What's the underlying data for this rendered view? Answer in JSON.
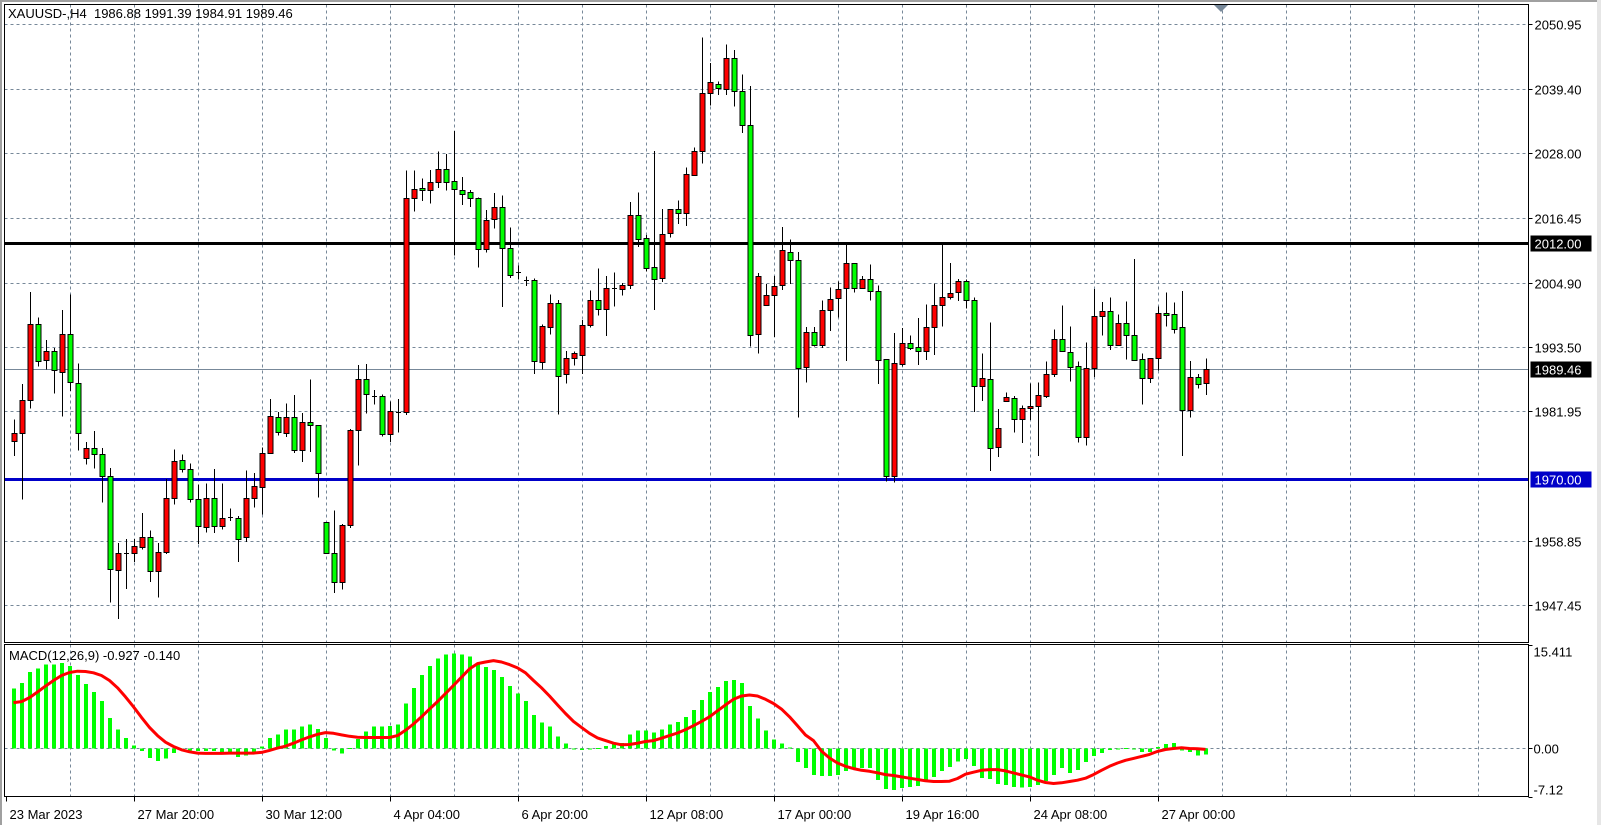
{
  "chart_data": {
    "type": "candlestick",
    "title": "XAUUSD-,H4  1986.88 1991.39 1984.91 1989.46",
    "bull_color": "#ff0000",
    "bear_color": "#00ff00",
    "grid": true,
    "grid_color": "#778899",
    "ylim": [
      1940.8,
      2054.4
    ],
    "y_ticks": [
      "2050.95",
      "2039.40",
      "2028.00",
      "2016.45",
      "2004.90",
      "1993.50",
      "1981.95",
      "1958.85",
      "1947.45"
    ],
    "x_ticks": [
      {
        "label": "23 Mar 2023",
        "bar": -1
      },
      {
        "label": "27 Mar 20:00",
        "bar": 15
      },
      {
        "label": "30 Mar 12:00",
        "bar": 31
      },
      {
        "label": "4 Apr 04:00",
        "bar": 47
      },
      {
        "label": "6 Apr 20:00",
        "bar": 63
      },
      {
        "label": "12 Apr 08:00",
        "bar": 79
      },
      {
        "label": "17 Apr 00:00",
        "bar": 95
      },
      {
        "label": "19 Apr 16:00",
        "bar": 111
      },
      {
        "label": "24 Apr 08:00",
        "bar": 127
      },
      {
        "label": "27 Apr 00:00",
        "bar": 143
      }
    ],
    "horizontal_lines": [
      {
        "price": 2012.0,
        "label": "2012.00",
        "color": "#000000"
      },
      {
        "price": 1970.0,
        "label": "1970.00",
        "color": "#0000c8"
      }
    ],
    "last_price": {
      "price": 1989.46,
      "label": "1989.46",
      "color": "#778899"
    },
    "ohlc_columns": [
      "open",
      "high",
      "low",
      "close"
    ],
    "ohlc": [
      [
        1976.6,
        1980.5,
        1974.0,
        1978.1
      ],
      [
        1978.1,
        1986.8,
        1966.3,
        1984.0
      ],
      [
        1984.0,
        2003.2,
        1982.5,
        1997.5
      ],
      [
        1997.6,
        1998.7,
        1989.9,
        1991.1
      ],
      [
        1991.1,
        1994.7,
        1989.4,
        1992.7
      ],
      [
        1992.7,
        1993.2,
        1985.1,
        1989.3
      ],
      [
        1989.0,
        2000.0,
        1981.0,
        1995.7
      ],
      [
        1995.7,
        2002.8,
        1985.6,
        1987.1
      ],
      [
        1987.0,
        1990.5,
        1975.0,
        1978.1
      ],
      [
        1973.7,
        1976.5,
        1972.5,
        1975.4
      ],
      [
        1975.4,
        1978.5,
        1971.8,
        1974.4
      ],
      [
        1974.4,
        1975.4,
        1965.7,
        1970.5
      ],
      [
        1970.5,
        1971.9,
        1947.9,
        1954.0
      ],
      [
        1953.6,
        1958.5,
        1945.0,
        1956.7
      ],
      [
        1956.7,
        1959.2,
        1950.3,
        1956.7
      ],
      [
        1956.8,
        1959.2,
        1955.1,
        1958.0
      ],
      [
        1957.8,
        1963.9,
        1957.4,
        1959.6
      ],
      [
        1959.6,
        1960.7,
        1951.6,
        1953.6
      ],
      [
        1953.6,
        1958.5,
        1948.8,
        1956.9
      ],
      [
        1956.9,
        1969.9,
        1956.6,
        1966.5
      ],
      [
        1966.5,
        1975.2,
        1965.4,
        1973.1
      ],
      [
        1973.3,
        1974.3,
        1971.1,
        1971.7
      ],
      [
        1971.7,
        1972.7,
        1965.7,
        1966.3
      ],
      [
        1966.3,
        1968.9,
        1958.3,
        1961.5
      ],
      [
        1961.5,
        1969.1,
        1960.4,
        1966.6
      ],
      [
        1966.6,
        1971.7,
        1960.3,
        1961.6
      ],
      [
        1961.6,
        1969.1,
        1960.9,
        1963.0
      ],
      [
        1963.1,
        1964.7,
        1962.4,
        1963.1
      ],
      [
        1963.0,
        1963.3,
        1955.1,
        1959.3
      ],
      [
        1959.5,
        1971.4,
        1958.7,
        1966.5
      ],
      [
        1966.5,
        1971.0,
        1964.8,
        1968.7
      ],
      [
        1968.6,
        1975.5,
        1963.6,
        1974.6
      ],
      [
        1974.6,
        1984.2,
        1974.6,
        1981.1
      ],
      [
        1980.9,
        1981.8,
        1977.7,
        1978.3
      ],
      [
        1978.1,
        1983.4,
        1977.4,
        1980.9
      ],
      [
        1980.9,
        1984.9,
        1974.5,
        1975.1
      ],
      [
        1975.1,
        1981.7,
        1972.9,
        1980.1
      ],
      [
        1980.1,
        1987.6,
        1974.7,
        1979.5
      ],
      [
        1979.5,
        1979.5,
        1966.6,
        1971.0
      ],
      [
        1962.3,
        1962.3,
        1956.7,
        1956.7
      ],
      [
        1956.7,
        1964.3,
        1949.6,
        1951.6
      ],
      [
        1951.6,
        1961.9,
        1950.2,
        1961.7
      ],
      [
        1961.7,
        1978.8,
        1961.2,
        1978.6
      ],
      [
        1978.6,
        1990.2,
        1972.3,
        1987.7
      ],
      [
        1987.7,
        1990.4,
        1981.6,
        1985.0
      ],
      [
        1984.7,
        1985.8,
        1983.2,
        1984.7
      ],
      [
        1984.7,
        1985.0,
        1977.5,
        1977.9
      ],
      [
        1977.9,
        1983.7,
        1976.5,
        1982.0
      ],
      [
        1981.9,
        1984.2,
        1978.2,
        1981.9
      ],
      [
        1981.9,
        2024.8,
        1981.3,
        2020.0
      ],
      [
        2020.0,
        2024.8,
        2017.5,
        2021.6
      ],
      [
        2021.8,
        2023.4,
        2019.4,
        2021.4
      ],
      [
        2021.4,
        2024.9,
        2019.0,
        2022.8
      ],
      [
        2022.8,
        2028.2,
        2021.7,
        2025.1
      ],
      [
        2025.1,
        2027.8,
        2021.3,
        2022.8
      ],
      [
        2022.9,
        2031.9,
        2009.7,
        2021.4
      ],
      [
        2021.4,
        2023.7,
        2018.7,
        2020.7
      ],
      [
        2021.0,
        2021.4,
        2018.3,
        2020.0
      ],
      [
        2020.0,
        2020.0,
        2007.6,
        2011.0
      ],
      [
        2011.0,
        2017.8,
        2010.2,
        2016.1
      ],
      [
        2016.1,
        2020.8,
        2014.5,
        2018.3
      ],
      [
        2018.3,
        2020.4,
        2000.5,
        2011.0
      ],
      [
        2011.0,
        2014.7,
        2005.7,
        2006.2
      ],
      [
        2006.7,
        2007.9,
        2005.4,
        2006.7
      ],
      [
        2005.3,
        2006.0,
        2004.3,
        2005.3
      ],
      [
        2005.3,
        2005.6,
        1988.6,
        1990.8
      ],
      [
        1990.8,
        1997.4,
        1989.4,
        1997.2
      ],
      [
        1997.1,
        2002.8,
        1995.6,
        2001.3
      ],
      [
        2001.3,
        2001.8,
        1981.4,
        1988.3
      ],
      [
        1988.6,
        1992.7,
        1986.9,
        1991.4
      ],
      [
        1991.4,
        1992.6,
        1990.1,
        1992.3
      ],
      [
        1992.1,
        1998.2,
        1988.6,
        1997.4
      ],
      [
        1997.3,
        2003.5,
        1996.9,
        2001.8
      ],
      [
        2001.8,
        2007.4,
        1999.0,
        2000.2
      ],
      [
        2000.2,
        2006.1,
        1995.4,
        2003.9
      ],
      [
        2003.9,
        2006.7,
        2000.6,
        2003.9
      ],
      [
        2003.8,
        2004.8,
        2002.6,
        2004.5
      ],
      [
        2004.5,
        2019.2,
        2003.7,
        2017.0
      ],
      [
        2017.0,
        2020.9,
        2011.2,
        2012.8
      ],
      [
        2012.8,
        2013.4,
        2006.9,
        2007.4
      ],
      [
        2007.7,
        2028.3,
        2000.0,
        2005.6
      ],
      [
        2005.6,
        2018.0,
        2005.0,
        2013.5
      ],
      [
        2013.6,
        2017.9,
        2012.9,
        2017.9
      ],
      [
        2017.9,
        2019.5,
        2015.3,
        2017.2
      ],
      [
        2017.2,
        2025.4,
        2015.0,
        2024.2
      ],
      [
        2024.2,
        2028.9,
        2024.2,
        2028.4
      ],
      [
        2028.3,
        2048.5,
        2026.1,
        2038.6
      ],
      [
        2038.6,
        2044.0,
        2036.4,
        2040.6
      ],
      [
        2040.2,
        2040.7,
        2038.3,
        2039.5
      ],
      [
        2039.3,
        2047.3,
        2038.3,
        2044.9
      ],
      [
        2044.9,
        2046.3,
        2036.2,
        2039.0
      ],
      [
        2039.0,
        2041.9,
        2031.5,
        2032.9
      ],
      [
        2032.9,
        2039.9,
        1993.5,
        1995.5
      ],
      [
        1995.7,
        2006.6,
        1992.3,
        2006.1
      ],
      [
        2000.9,
        2004.6,
        2000.9,
        2002.7
      ],
      [
        2002.7,
        2006.1,
        1995.2,
        2004.3
      ],
      [
        2004.3,
        2014.8,
        2003.6,
        2010.6
      ],
      [
        2010.4,
        2012.6,
        2004.6,
        2008.9
      ],
      [
        2008.9,
        2010.3,
        1980.9,
        1989.7
      ],
      [
        1989.7,
        1997.0,
        1987.1,
        1996.0
      ],
      [
        1996.1,
        1997.0,
        1993.5,
        1993.7
      ],
      [
        1993.7,
        2001.7,
        1993.2,
        2000.0
      ],
      [
        2000.0,
        2004.0,
        1996.3,
        2002.0
      ],
      [
        2002.2,
        2005.1,
        1998.7,
        2003.8
      ],
      [
        2003.8,
        2011.7,
        1990.9,
        2008.3
      ],
      [
        2008.4,
        2008.4,
        2003.1,
        2003.9
      ],
      [
        2003.9,
        2006.1,
        2003.9,
        2005.5
      ],
      [
        2005.5,
        2008.1,
        2001.7,
        2003.4
      ],
      [
        2003.4,
        2004.4,
        1986.8,
        1991.2
      ],
      [
        1991.2,
        1991.2,
        1969.5,
        1970.4
      ],
      [
        1970.3,
        1995.9,
        1969.3,
        1990.5
      ],
      [
        1990.5,
        1996.8,
        1989.9,
        1994.2
      ],
      [
        1994.2,
        1995.5,
        1992.9,
        1993.3
      ],
      [
        1993.4,
        1998.6,
        1990.2,
        1992.6
      ],
      [
        1992.6,
        2001.0,
        1991.1,
        1996.9
      ],
      [
        1997.0,
        2004.7,
        1992.0,
        2000.9
      ],
      [
        2000.9,
        2011.7,
        1997.1,
        2002.3
      ],
      [
        2002.3,
        2008.4,
        2001.9,
        2003.1
      ],
      [
        2003.1,
        2005.5,
        2001.6,
        2005.1
      ],
      [
        2005.1,
        2005.4,
        2000.3,
        2001.8
      ],
      [
        2001.8,
        2002.2,
        1981.8,
        1986.5
      ],
      [
        1986.5,
        1992.3,
        1983.8,
        1987.9
      ],
      [
        1987.8,
        1997.8,
        1971.3,
        1975.6
      ],
      [
        1975.6,
        1982.4,
        1973.8,
        1979.0
      ],
      [
        1983.7,
        1985.3,
        1983.7,
        1984.5
      ],
      [
        1984.3,
        1984.7,
        1978.2,
        1980.5
      ],
      [
        1980.5,
        1983.0,
        1976.3,
        1982.5
      ],
      [
        1982.5,
        1986.9,
        1980.4,
        1982.9
      ],
      [
        1982.8,
        1987.1,
        1974.0,
        1984.8
      ],
      [
        1984.7,
        1990.8,
        1984.3,
        1988.6
      ],
      [
        1988.6,
        1996.5,
        1988.1,
        1994.8
      ],
      [
        1994.8,
        2000.8,
        1992.6,
        1992.6
      ],
      [
        1992.6,
        1997.1,
        1987.3,
        1990.0
      ],
      [
        1990.0,
        1990.8,
        1976.4,
        1977.4
      ],
      [
        1977.4,
        1994.2,
        1975.9,
        1989.6
      ],
      [
        1989.7,
        2003.7,
        1988.1,
        1998.9
      ],
      [
        1998.9,
        2001.4,
        1995.5,
        1999.8
      ],
      [
        1999.8,
        2002.2,
        1992.9,
        1993.8
      ],
      [
        1993.8,
        1999.2,
        1993.8,
        1997.7
      ],
      [
        1997.7,
        2001.5,
        1991.2,
        1995.6
      ],
      [
        1995.6,
        2009.1,
        1991.2,
        1991.2
      ],
      [
        1991.2,
        1992.3,
        1983.2,
        1987.9
      ],
      [
        1987.9,
        1991.4,
        1987.0,
        1991.4
      ],
      [
        1991.4,
        2000.6,
        1989.2,
        1999.5
      ],
      [
        1999.5,
        2003.1,
        1997.1,
        1999.2
      ],
      [
        1999.3,
        2001.3,
        1995.8,
        1996.7
      ],
      [
        1996.9,
        2003.4,
        1974.0,
        1982.1
      ],
      [
        1982.1,
        1990.9,
        1980.9,
        1988.0
      ],
      [
        1988.0,
        1988.6,
        1986.0,
        1986.8
      ],
      [
        1986.88,
        1991.39,
        1984.91,
        1989.46
      ]
    ],
    "macd": {
      "label": "MACD(12,26,9) -0.927 -0.140",
      "ylim": [
        -7.12,
        15.411
      ],
      "y_ticks": [
        {
          "value": 15.411,
          "label": "15.411"
        },
        {
          "value": 0,
          "label": "0.00"
        },
        {
          "value": -7.12,
          "label": "-7.12"
        }
      ],
      "histogram_color": "#00ff00",
      "signal_color": "#ff0000",
      "main": [
        8.86,
        9.69,
        11.31,
        11.89,
        12.43,
        12.43,
        12.68,
        12.19,
        10.92,
        9.59,
        8.37,
        7.05,
        4.55,
        2.79,
        1.52,
        0.44,
        -0.39,
        -1.42,
        -1.86,
        -1.52,
        -0.69,
        -0.1,
        -0.29,
        -0.39,
        -0.39,
        -0.39,
        -0.54,
        -0.59,
        -1.27,
        -1.03,
        -0.54,
        0.29,
        1.52,
        2.06,
        2.79,
        2.79,
        3.23,
        3.52,
        2.89,
        1.52,
        -0.29,
        -0.78,
        0.1,
        1.42,
        2.5,
        3.23,
        3.23,
        3.33,
        3.52,
        6.66,
        9.0,
        10.92,
        12.19,
        13.36,
        13.95,
        14.1,
        13.95,
        13.66,
        12.68,
        12.04,
        11.6,
        10.57,
        9.25,
        8.13,
        7.05,
        4.99,
        3.82,
        3.23,
        1.76,
        0.73,
        0.02,
        -0.2,
        0.02,
        0.1,
        0.39,
        0.69,
        0.83,
        2.06,
        2.64,
        2.64,
        2.35,
        2.79,
        3.52,
        3.96,
        4.7,
        5.73,
        7.2,
        8.37,
        9.1,
        9.99,
        10.13,
        9.69,
        6.31,
        4.41,
        2.64,
        1.32,
        0.73,
        0.15,
        -2.01,
        -2.89,
        -3.92,
        -4.06,
        -4.06,
        -3.92,
        -3.33,
        -2.99,
        -2.89,
        -2.89,
        -4.7,
        -6.02,
        -6.12,
        -5.83,
        -5.68,
        -5.53,
        -4.7,
        -4.21,
        -3.33,
        -2.74,
        -1.96,
        -1.57,
        -2.59,
        -4.41,
        -4.55,
        -5.24,
        -5.43,
        -5.68,
        -5.78,
        -5.68,
        -5.43,
        -4.85,
        -3.92,
        -2.89,
        -3.62,
        -3.18,
        -2.01,
        -1.13,
        -0.64,
        -0.2,
        -0.1,
        0.1,
        -0.05,
        -0.54,
        -0.54,
        0.24,
        0.69,
        0.83,
        -0.29,
        -0.54,
        -1.03,
        -0.927
      ],
      "signal": [
        6.8,
        6.95,
        7.54,
        8.37,
        9.25,
        10.08,
        10.82,
        11.26,
        11.45,
        11.41,
        11.21,
        10.82,
        10.08,
        9.0,
        7.64,
        6.17,
        4.6,
        3.13,
        1.91,
        0.93,
        0.29,
        -0.2,
        -0.49,
        -0.69,
        -0.73,
        -0.73,
        -0.73,
        -0.69,
        -0.69,
        -0.69,
        -0.69,
        -0.59,
        -0.29,
        0.05,
        0.34,
        0.78,
        1.27,
        1.71,
        2.1,
        2.35,
        2.25,
        2.01,
        1.81,
        1.66,
        1.62,
        1.62,
        1.62,
        1.62,
        1.91,
        2.7,
        3.62,
        4.7,
        5.83,
        6.95,
        8.13,
        9.35,
        10.57,
        11.8,
        12.58,
        12.82,
        13.02,
        12.82,
        12.43,
        11.94,
        11.21,
        10.08,
        9.0,
        7.78,
        6.46,
        5.19,
        4.01,
        3.13,
        2.25,
        1.57,
        1.17,
        0.78,
        0.54,
        0.59,
        0.78,
        1.03,
        1.17,
        1.52,
        1.91,
        2.3,
        2.79,
        3.38,
        4.01,
        4.7,
        5.58,
        6.46,
        7.29,
        7.78,
        7.93,
        7.78,
        7.29,
        6.66,
        5.83,
        4.7,
        3.38,
        2.0,
        1.17,
        -0.39,
        -1.42,
        -2.15,
        -2.64,
        -2.99,
        -3.23,
        -3.38,
        -3.6,
        -3.87,
        -4.01,
        -4.21,
        -4.41,
        -4.6,
        -4.8,
        -4.9,
        -4.9,
        -4.85,
        -4.45,
        -3.82,
        -3.52,
        -3.23,
        -3.13,
        -3.13,
        -3.33,
        -3.62,
        -3.92,
        -4.21,
        -4.7,
        -5.04,
        -5.19,
        -5.09,
        -4.9,
        -4.7,
        -4.41,
        -3.87,
        -3.23,
        -2.64,
        -2.15,
        -1.76,
        -1.47,
        -1.17,
        -0.88,
        -0.44,
        -0.15,
        0,
        0.1,
        0,
        -0.05,
        -0.14
      ]
    }
  }
}
